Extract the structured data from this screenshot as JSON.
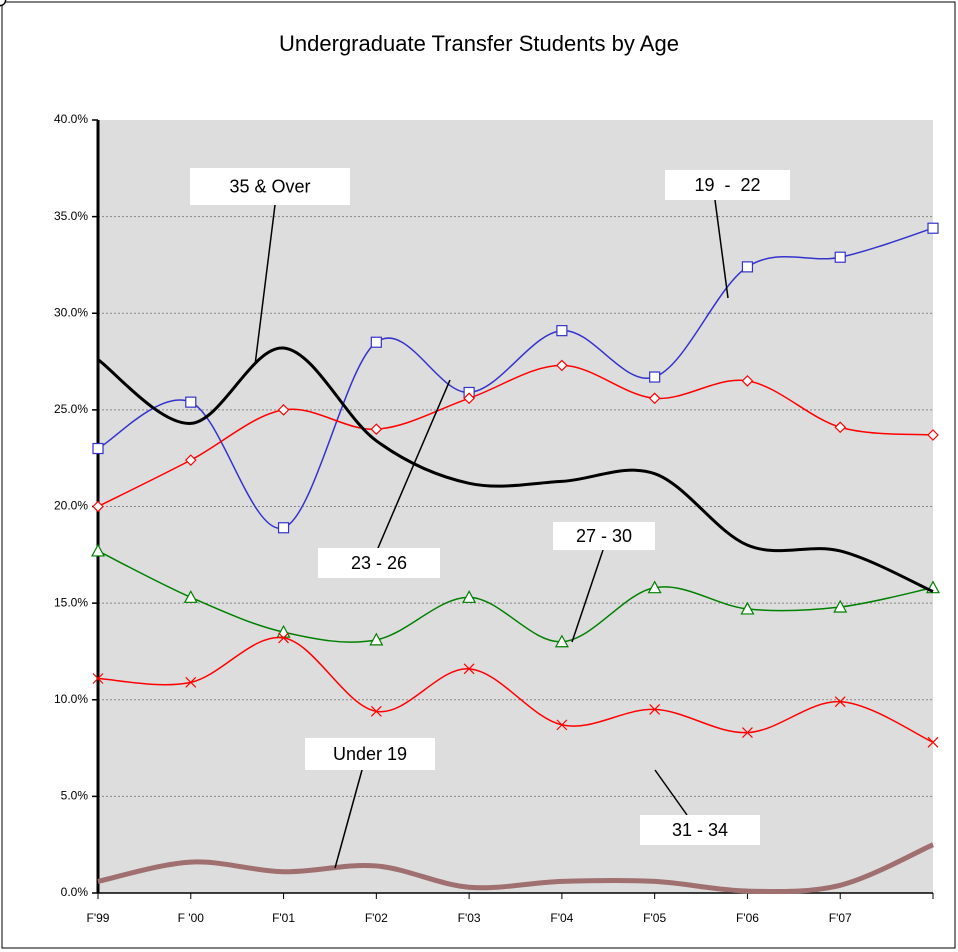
{
  "chart_data": {
    "type": "line",
    "title": "Undergraduate Transfer Students by Age",
    "categories": [
      "F'99",
      "F '00",
      "F'01",
      "F'02",
      "F'03",
      "F'04",
      "F'05",
      "F'06",
      "F'07",
      null
    ],
    "ylim": [
      0,
      40
    ],
    "yticks": [
      {
        "value": 0,
        "label": "0.0%"
      },
      {
        "value": 5,
        "label": "5.0%"
      },
      {
        "value": 10,
        "label": "10.0%"
      },
      {
        "value": 15,
        "label": "15.0%"
      },
      {
        "value": 20,
        "label": "20.0%"
      },
      {
        "value": 25,
        "label": "25.0%"
      },
      {
        "value": 30,
        "label": "30.0%"
      },
      {
        "value": 35,
        "label": "35.0%"
      },
      {
        "value": 40,
        "label": "40.0%"
      }
    ],
    "grid": true,
    "series": [
      {
        "name": "Under 19",
        "color": "#a07070",
        "marker": "circle",
        "line_width": 5,
        "values": [
          0.6,
          1.6,
          1.1,
          1.4,
          0.3,
          0.6,
          0.6,
          0.1,
          0.4,
          2.5
        ]
      },
      {
        "name": "19  -  22",
        "color": "#3333cc",
        "marker": "square",
        "line_width": 1.5,
        "values": [
          23.0,
          25.4,
          18.9,
          28.5,
          25.9,
          29.1,
          26.7,
          32.4,
          32.9,
          34.4
        ]
      },
      {
        "name": "23 - 26",
        "color": "#ff0000",
        "marker": "diamond",
        "line_width": 1.5,
        "values": [
          20.0,
          22.4,
          25.0,
          24.0,
          25.6,
          27.3,
          25.6,
          26.5,
          24.1,
          23.7
        ]
      },
      {
        "name": "27 - 30",
        "color": "#008000",
        "marker": "triangle",
        "line_width": 1.5,
        "values": [
          17.7,
          15.3,
          13.5,
          13.1,
          15.3,
          13.0,
          15.8,
          14.7,
          14.8,
          15.8
        ]
      },
      {
        "name": "31 - 34",
        "color": "#ff0000",
        "marker": "x",
        "line_width": 1.5,
        "values": [
          11.1,
          10.9,
          13.2,
          9.4,
          11.6,
          8.7,
          9.5,
          8.3,
          9.9,
          7.8
        ]
      },
      {
        "name": "35 & Over",
        "color": "#000000",
        "marker": "circle",
        "line_width": 3,
        "values": [
          27.6,
          24.3,
          28.2,
          23.4,
          21.2,
          21.3,
          21.7,
          18.0,
          17.7,
          15.6
        ]
      }
    ]
  }
}
